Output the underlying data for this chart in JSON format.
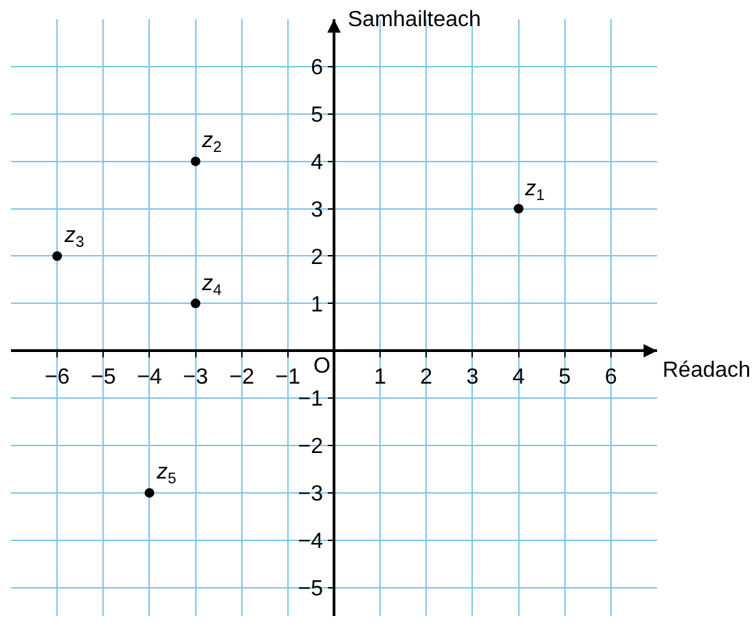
{
  "chart_data": {
    "type": "scatter",
    "xlabel": "Réadach",
    "ylabel": "Samhailteach",
    "x": [
      4,
      -3,
      -6,
      -3,
      -4
    ],
    "series": [
      {
        "color": "#000000",
        "values": [
          3,
          4,
          2,
          1,
          -3
        ]
      }
    ],
    "marker": "circle",
    "xlim": [
      -7,
      7
    ],
    "ylim": [
      -5.6,
      7
    ],
    "xticks": [
      {
        "value": -6,
        "label": "−6"
      },
      {
        "value": -5,
        "label": "−5"
      },
      {
        "value": -4,
        "label": "−4"
      },
      {
        "value": -3,
        "label": "−3"
      },
      {
        "value": -2,
        "label": "−2"
      },
      {
        "value": -1,
        "label": "−1"
      },
      1,
      2,
      3,
      4,
      5,
      6
    ],
    "yticks": [
      {
        "value": -5,
        "label": "−5"
      },
      {
        "value": -4,
        "label": "−4"
      },
      {
        "value": -3,
        "label": "−3"
      },
      {
        "value": -2,
        "label": "−2"
      },
      {
        "value": -1,
        "label": "−1"
      },
      1,
      2,
      3,
      4,
      5,
      6
    ],
    "grid": true,
    "annotations": [
      {
        "text": "z$_{1}$",
        "x": 4,
        "y": 3
      },
      {
        "text": "z$_{2}$",
        "x": -3,
        "y": 4
      },
      {
        "text": "z$_{3}$",
        "x": -6,
        "y": 2
      },
      {
        "text": "z$_{4}$",
        "x": -3,
        "y": 1
      },
      {
        "text": "z$_{5}$",
        "x": -4,
        "y": -3
      },
      "O"
    ]
  }
}
